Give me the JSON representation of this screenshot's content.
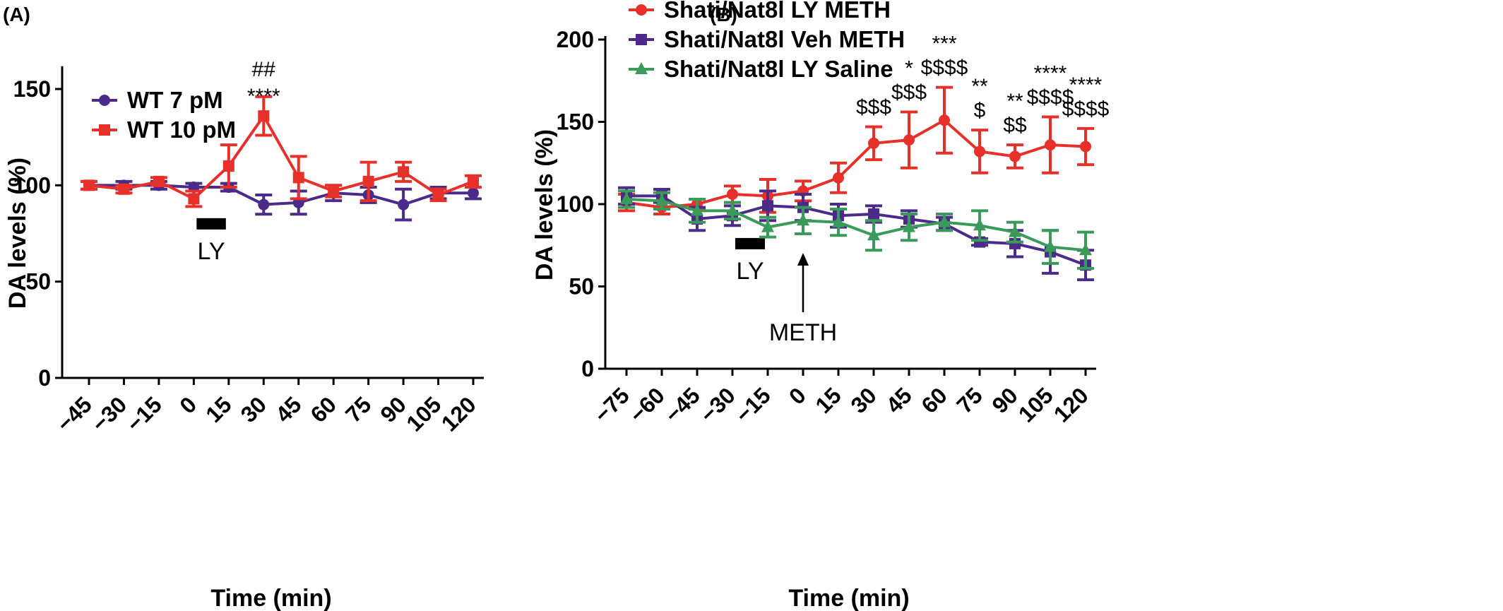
{
  "panels": [
    {
      "label": "(A)",
      "chart_data": {
        "type": "line",
        "x": [
          -45,
          -30,
          -15,
          0,
          15,
          30,
          45,
          60,
          75,
          90,
          105,
          120
        ],
        "series": [
          {
            "name": "WT 7 pM",
            "color": "#4b2a8a",
            "marker": "circle",
            "values": [
              100,
              100,
              100,
              99,
              99,
              90,
              91,
              96,
              95,
              90,
              96,
              96
            ],
            "errors": [
              2,
              2,
              2,
              2,
              2,
              5,
              6,
              4,
              4,
              8,
              3,
              3
            ]
          },
          {
            "name": "WT 10 pM",
            "color": "#e8302a",
            "marker": "square",
            "values": [
              100,
              98,
              102,
              93,
              110,
              136,
              104,
              97,
              102,
              107,
              95,
              102
            ],
            "errors": [
              2,
              2,
              2,
              4,
              11,
              10,
              11,
              3,
              10,
              5,
              3,
              3
            ]
          }
        ],
        "xlabel": "Time (min)",
        "ylabel": "DA levels (%)",
        "yticks": [
          0,
          50,
          100,
          150
        ],
        "xticks": [
          "−45",
          "−30",
          "−15",
          "0",
          "15",
          "30",
          "45",
          "60",
          "75",
          "90",
          "105",
          "120"
        ],
        "ylim": [
          0,
          160
        ],
        "xlim": [
          -45,
          120
        ],
        "legend": "top-left",
        "bar": {
          "label": "LY",
          "x_start": 0,
          "x_end": 15,
          "y": 80
        },
        "annotations": [
          {
            "x": 30,
            "lines": [
              "##",
              "****"
            ]
          }
        ]
      }
    },
    {
      "label": "(B)",
      "chart_data": {
        "type": "line",
        "x": [
          -75,
          -60,
          -45,
          -30,
          -15,
          0,
          15,
          30,
          45,
          60,
          75,
          90,
          105,
          120
        ],
        "series": [
          {
            "name": "Shati/Nat8l LY METH",
            "color": "#e8302a",
            "marker": "circle",
            "values": [
              101,
              98,
              100,
              106,
              105,
              108,
              116,
              137,
              139,
              151,
              132,
              129,
              136,
              135
            ],
            "errors": [
              5,
              4,
              3,
              5,
              10,
              6,
              9,
              10,
              17,
              20,
              13,
              7,
              17,
              11
            ]
          },
          {
            "name": "Shati/Nat8l Veh METH",
            "color": "#4b2a8a",
            "marker": "square",
            "values": [
              105,
              105,
              91,
              93,
              99,
              98,
              93,
              94,
              91,
              88,
              77,
              76,
              71,
              63
            ],
            "errors": [
              5,
              4,
              7,
              6,
              9,
              8,
              7,
              5,
              5,
              4,
              2,
              8,
              13,
              9
            ]
          },
          {
            "name": "Shati/Nat8l LY Saline",
            "color": "#3a9a5a",
            "marker": "triangle",
            "values": [
              103,
              102,
              96,
              96,
              86,
              90,
              89,
              81,
              86,
              89,
              87,
              83,
              74,
              72
            ],
            "errors": [
              5,
              5,
              7,
              5,
              6,
              8,
              8,
              9,
              8,
              5,
              9,
              6,
              10,
              11
            ]
          }
        ],
        "xlabel": "Time (min)",
        "ylabel": "DA levels (%)",
        "yticks": [
          0,
          50,
          100,
          150,
          200
        ],
        "xticks": [
          "−75",
          "−60",
          "−45",
          "−30",
          "−15",
          "0",
          "15",
          "30",
          "45",
          "60",
          "75",
          "90",
          "105",
          "120"
        ],
        "ylim": [
          0,
          200
        ],
        "xlim": [
          -75,
          120
        ],
        "legend": "top-left",
        "bar": {
          "label": "LY",
          "x_start": -30,
          "x_end": -15,
          "y": 76
        },
        "arrow": {
          "label": "METH",
          "x": 0
        },
        "annotations": [
          {
            "x": 30,
            "lines": [
              "$$$"
            ]
          },
          {
            "x": 45,
            "lines": [
              "*",
              "$$$"
            ]
          },
          {
            "x": 60,
            "lines": [
              "***",
              "$$$$"
            ]
          },
          {
            "x": 75,
            "lines": [
              "**",
              "$"
            ]
          },
          {
            "x": 90,
            "lines": [
              "**",
              "$$"
            ]
          },
          {
            "x": 105,
            "lines": [
              "****",
              "$$$$"
            ]
          },
          {
            "x": 120,
            "lines": [
              "****",
              "$$$$"
            ]
          }
        ]
      }
    }
  ]
}
